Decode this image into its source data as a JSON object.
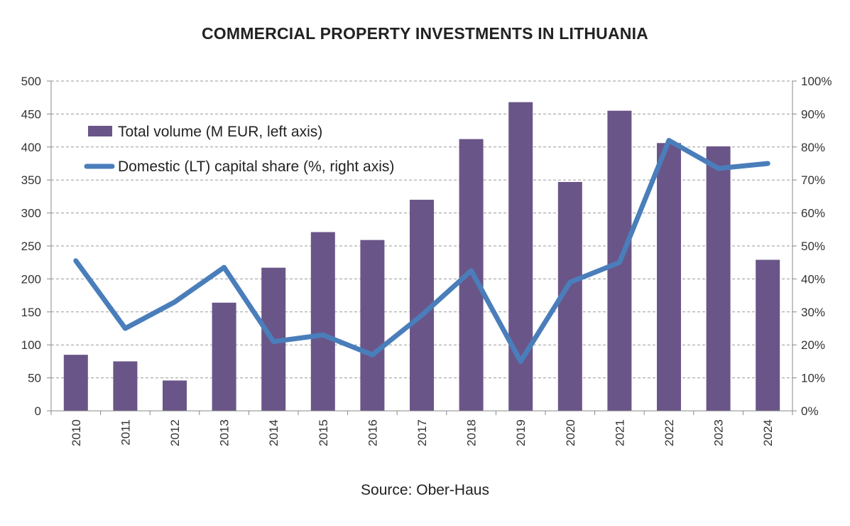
{
  "chart_data": {
    "type": "bar",
    "title": "COMMERCIAL PROPERTY INVESTMENTS IN LITHUANIA",
    "source": "Source: Ober-Haus",
    "categories": [
      "2010",
      "2011",
      "2012",
      "2013",
      "2014",
      "2015",
      "2016",
      "2017",
      "2018",
      "2019",
      "2020",
      "2021",
      "2022",
      "2023",
      "2024"
    ],
    "series": [
      {
        "name": "Total volume (M EUR, left axis)",
        "type": "bar",
        "axis": "left",
        "color": "#6a5588",
        "values": [
          85,
          75,
          46,
          164,
          217,
          271,
          259,
          320,
          412,
          468,
          347,
          455,
          406,
          401,
          229
        ]
      },
      {
        "name": "Domestic (LT) capital share (%, right axis)",
        "type": "line",
        "axis": "right",
        "color": "#4a7ebb",
        "values": [
          45.5,
          25,
          33,
          43.5,
          21,
          23,
          17,
          29,
          42.5,
          15,
          39,
          45,
          82,
          73.5,
          75
        ]
      }
    ],
    "left_axis": {
      "ylim": [
        0,
        500
      ],
      "ticks": [
        "0",
        "50",
        "100",
        "150",
        "200",
        "250",
        "300",
        "350",
        "400",
        "450",
        "500"
      ]
    },
    "right_axis": {
      "ylim": [
        0,
        100
      ],
      "ticks": [
        "0%",
        "10%",
        "20%",
        "30%",
        "40%",
        "50%",
        "60%",
        "70%",
        "80%",
        "90%",
        "100%"
      ]
    },
    "grid": true,
    "legend_position": "top-left"
  }
}
